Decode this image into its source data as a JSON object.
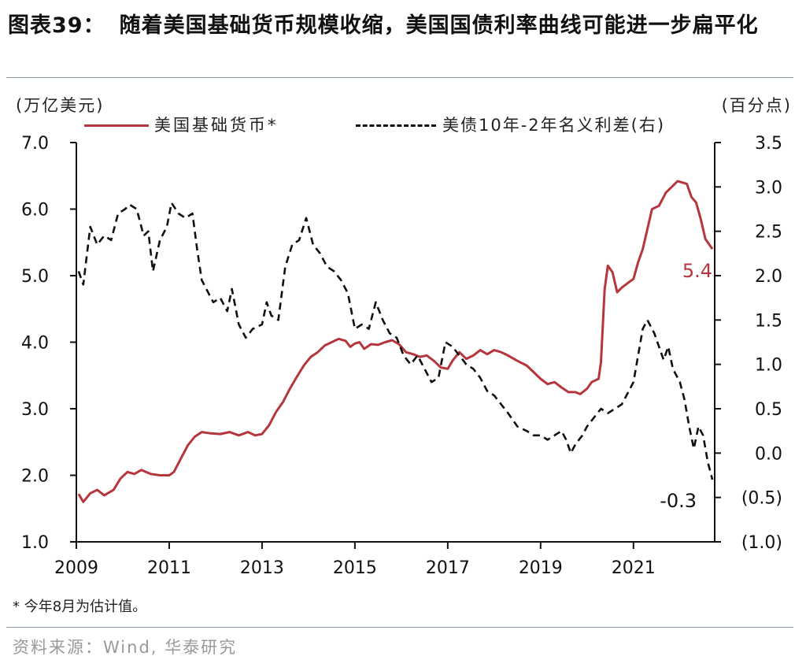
{
  "title_label": "图表39：",
  "title_text": "随着美国基础货币规模收缩，美国国债利率曲线可能进一步扁平化",
  "footnote": "* 今年8月为估计值。",
  "source": "资料来源：Wind, 华泰研究",
  "chart_data": {
    "type": "line",
    "title": "随着美国基础货币规模收缩，美国国债利率曲线可能进一步扁平化",
    "left_axis": {
      "unit": "(万亿美元)",
      "range": [
        1.0,
        7.0
      ],
      "ticks": [
        "1.0",
        "2.0",
        "3.0",
        "4.0",
        "5.0",
        "6.0",
        "7.0"
      ]
    },
    "right_axis": {
      "unit": "(百分点)",
      "range": [
        -1.0,
        3.5
      ],
      "ticks": [
        "(1.0)",
        "(0.5)",
        "0.0",
        "0.5",
        "1.0",
        "1.5",
        "2.0",
        "2.5",
        "3.0",
        "3.5"
      ]
    },
    "x_axis": {
      "range": [
        2009.0,
        2022.75
      ],
      "ticks": [
        "2009",
        "2011",
        "2013",
        "2015",
        "2017",
        "2019",
        "2021"
      ]
    },
    "grid": false,
    "legend_position": "top",
    "series": [
      {
        "name": "美国基础货币*",
        "axis": "left",
        "color": "#b5363c",
        "style": "solid",
        "end_label": "5.4",
        "points": [
          [
            2009.05,
            1.72
          ],
          [
            2009.15,
            1.6
          ],
          [
            2009.3,
            1.73
          ],
          [
            2009.45,
            1.78
          ],
          [
            2009.6,
            1.7
          ],
          [
            2009.8,
            1.78
          ],
          [
            2009.95,
            1.95
          ],
          [
            2010.1,
            2.05
          ],
          [
            2010.25,
            2.02
          ],
          [
            2010.4,
            2.08
          ],
          [
            2010.6,
            2.02
          ],
          [
            2010.8,
            2.0
          ],
          [
            2011.0,
            2.0
          ],
          [
            2011.1,
            2.05
          ],
          [
            2011.25,
            2.25
          ],
          [
            2011.4,
            2.45
          ],
          [
            2011.55,
            2.58
          ],
          [
            2011.7,
            2.65
          ],
          [
            2011.9,
            2.63
          ],
          [
            2012.1,
            2.62
          ],
          [
            2012.3,
            2.65
          ],
          [
            2012.5,
            2.6
          ],
          [
            2012.7,
            2.65
          ],
          [
            2012.85,
            2.6
          ],
          [
            2013.0,
            2.62
          ],
          [
            2013.15,
            2.75
          ],
          [
            2013.3,
            2.95
          ],
          [
            2013.45,
            3.1
          ],
          [
            2013.6,
            3.3
          ],
          [
            2013.75,
            3.48
          ],
          [
            2013.9,
            3.65
          ],
          [
            2014.05,
            3.78
          ],
          [
            2014.2,
            3.85
          ],
          [
            2014.35,
            3.95
          ],
          [
            2014.5,
            4.0
          ],
          [
            2014.65,
            4.05
          ],
          [
            2014.8,
            4.02
          ],
          [
            2014.9,
            3.93
          ],
          [
            2015.0,
            3.98
          ],
          [
            2015.1,
            4.0
          ],
          [
            2015.2,
            3.9
          ],
          [
            2015.35,
            3.97
          ],
          [
            2015.5,
            3.96
          ],
          [
            2015.65,
            4.0
          ],
          [
            2015.8,
            4.03
          ],
          [
            2015.95,
            3.97
          ],
          [
            2016.1,
            3.85
          ],
          [
            2016.25,
            3.82
          ],
          [
            2016.4,
            3.78
          ],
          [
            2016.55,
            3.8
          ],
          [
            2016.7,
            3.72
          ],
          [
            2016.85,
            3.62
          ],
          [
            2017.0,
            3.6
          ],
          [
            2017.1,
            3.72
          ],
          [
            2017.25,
            3.85
          ],
          [
            2017.4,
            3.75
          ],
          [
            2017.55,
            3.8
          ],
          [
            2017.7,
            3.88
          ],
          [
            2017.85,
            3.82
          ],
          [
            2018.0,
            3.88
          ],
          [
            2018.15,
            3.85
          ],
          [
            2018.3,
            3.8
          ],
          [
            2018.5,
            3.72
          ],
          [
            2018.7,
            3.65
          ],
          [
            2018.85,
            3.55
          ],
          [
            2019.0,
            3.45
          ],
          [
            2019.15,
            3.37
          ],
          [
            2019.3,
            3.4
          ],
          [
            2019.45,
            3.32
          ],
          [
            2019.6,
            3.25
          ],
          [
            2019.75,
            3.25
          ],
          [
            2019.85,
            3.22
          ],
          [
            2020.0,
            3.3
          ],
          [
            2020.1,
            3.4
          ],
          [
            2020.25,
            3.45
          ],
          [
            2020.3,
            3.7
          ],
          [
            2020.38,
            4.8
          ],
          [
            2020.45,
            5.15
          ],
          [
            2020.55,
            5.05
          ],
          [
            2020.65,
            4.75
          ],
          [
            2020.75,
            4.82
          ],
          [
            2020.9,
            4.9
          ],
          [
            2021.0,
            4.95
          ],
          [
            2021.1,
            5.2
          ],
          [
            2021.2,
            5.4
          ],
          [
            2021.3,
            5.7
          ],
          [
            2021.4,
            6.0
          ],
          [
            2021.55,
            6.05
          ],
          [
            2021.7,
            6.25
          ],
          [
            2021.85,
            6.35
          ],
          [
            2021.95,
            6.42
          ],
          [
            2022.05,
            6.4
          ],
          [
            2022.15,
            6.38
          ],
          [
            2022.25,
            6.18
          ],
          [
            2022.35,
            6.1
          ],
          [
            2022.45,
            5.85
          ],
          [
            2022.55,
            5.55
          ],
          [
            2022.7,
            5.4
          ]
        ]
      },
      {
        "name": "美债10年-2年名义利差(右)",
        "axis": "right",
        "color": "#111111",
        "style": "dashed",
        "end_label": "-0.3",
        "points": [
          [
            2009.05,
            2.05
          ],
          [
            2009.15,
            1.9
          ],
          [
            2009.3,
            2.55
          ],
          [
            2009.45,
            2.35
          ],
          [
            2009.6,
            2.45
          ],
          [
            2009.75,
            2.4
          ],
          [
            2009.9,
            2.7
          ],
          [
            2010.05,
            2.75
          ],
          [
            2010.15,
            2.8
          ],
          [
            2010.3,
            2.75
          ],
          [
            2010.45,
            2.45
          ],
          [
            2010.55,
            2.5
          ],
          [
            2010.65,
            2.05
          ],
          [
            2010.8,
            2.4
          ],
          [
            2010.95,
            2.55
          ],
          [
            2011.05,
            2.82
          ],
          [
            2011.2,
            2.7
          ],
          [
            2011.35,
            2.65
          ],
          [
            2011.5,
            2.7
          ],
          [
            2011.6,
            2.3
          ],
          [
            2011.7,
            1.95
          ],
          [
            2011.8,
            1.85
          ],
          [
            2011.95,
            1.7
          ],
          [
            2012.1,
            1.75
          ],
          [
            2012.25,
            1.6
          ],
          [
            2012.35,
            1.85
          ],
          [
            2012.5,
            1.45
          ],
          [
            2012.65,
            1.3
          ],
          [
            2012.8,
            1.4
          ],
          [
            2013.0,
            1.45
          ],
          [
            2013.1,
            1.7
          ],
          [
            2013.2,
            1.55
          ],
          [
            2013.35,
            1.5
          ],
          [
            2013.5,
            2.1
          ],
          [
            2013.65,
            2.35
          ],
          [
            2013.8,
            2.4
          ],
          [
            2013.95,
            2.65
          ],
          [
            2014.1,
            2.35
          ],
          [
            2014.25,
            2.25
          ],
          [
            2014.4,
            2.1
          ],
          [
            2014.55,
            2.05
          ],
          [
            2014.7,
            1.95
          ],
          [
            2014.85,
            1.8
          ],
          [
            2015.0,
            1.4
          ],
          [
            2015.15,
            1.45
          ],
          [
            2015.3,
            1.4
          ],
          [
            2015.45,
            1.7
          ],
          [
            2015.6,
            1.5
          ],
          [
            2015.75,
            1.35
          ],
          [
            2015.9,
            1.3
          ],
          [
            2016.05,
            1.1
          ],
          [
            2016.2,
            1.0
          ],
          [
            2016.35,
            1.1
          ],
          [
            2016.5,
            0.95
          ],
          [
            2016.65,
            0.8
          ],
          [
            2016.8,
            0.85
          ],
          [
            2016.95,
            1.25
          ],
          [
            2017.1,
            1.2
          ],
          [
            2017.25,
            1.1
          ],
          [
            2017.4,
            1.0
          ],
          [
            2017.55,
            0.95
          ],
          [
            2017.7,
            0.85
          ],
          [
            2017.85,
            0.7
          ],
          [
            2018.0,
            0.65
          ],
          [
            2018.15,
            0.55
          ],
          [
            2018.3,
            0.45
          ],
          [
            2018.5,
            0.3
          ],
          [
            2018.7,
            0.25
          ],
          [
            2018.85,
            0.2
          ],
          [
            2019.0,
            0.2
          ],
          [
            2019.15,
            0.15
          ],
          [
            2019.3,
            0.2
          ],
          [
            2019.45,
            0.25
          ],
          [
            2019.55,
            0.15
          ],
          [
            2019.65,
            0.0
          ],
          [
            2019.75,
            0.1
          ],
          [
            2019.9,
            0.2
          ],
          [
            2020.0,
            0.3
          ],
          [
            2020.15,
            0.4
          ],
          [
            2020.3,
            0.5
          ],
          [
            2020.45,
            0.45
          ],
          [
            2020.6,
            0.5
          ],
          [
            2020.75,
            0.55
          ],
          [
            2020.9,
            0.7
          ],
          [
            2021.0,
            0.8
          ],
          [
            2021.1,
            1.1
          ],
          [
            2021.2,
            1.4
          ],
          [
            2021.3,
            1.5
          ],
          [
            2021.45,
            1.35
          ],
          [
            2021.55,
            1.2
          ],
          [
            2021.65,
            1.05
          ],
          [
            2021.75,
            1.2
          ],
          [
            2021.85,
            0.95
          ],
          [
            2022.0,
            0.8
          ],
          [
            2022.1,
            0.6
          ],
          [
            2022.2,
            0.3
          ],
          [
            2022.3,
            0.05
          ],
          [
            2022.4,
            0.3
          ],
          [
            2022.5,
            0.2
          ],
          [
            2022.6,
            -0.1
          ],
          [
            2022.7,
            -0.3
          ]
        ]
      }
    ]
  }
}
